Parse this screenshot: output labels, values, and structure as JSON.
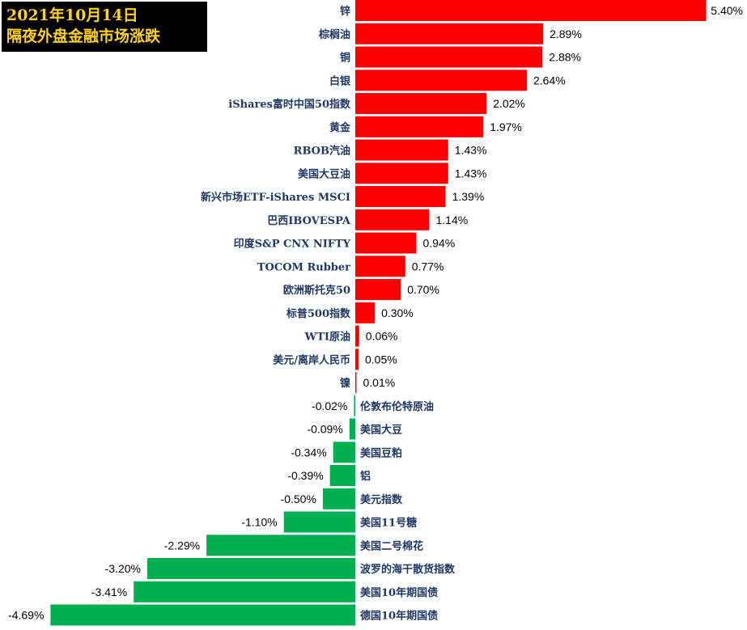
{
  "title": {
    "line1": "2021年10月14日",
    "line2": "隔夜外盘金融市场涨跌"
  },
  "chart_data": {
    "type": "bar",
    "orientation": "horizontal",
    "categories": [
      "锌",
      "棕榈油",
      "铜",
      "白银",
      "iShares富时中国50指数",
      "黄金",
      "RBOB汽油",
      "美国大豆油",
      "新兴市场ETF-iShares MSCI",
      "巴西IBOVESPA",
      "印度S&P CNX NIFTY",
      "TOCOM Rubber",
      "欧洲斯托克50",
      "标普500指数",
      "WTI原油",
      "美元/离岸人民币",
      "镍",
      "伦敦布伦特原油",
      "美国大豆",
      "美国豆粕",
      "铝",
      "美元指数",
      "美国11号糖",
      "美国二号棉花",
      "波罗的海干散货指数",
      "美国10年期国债",
      "德国10年期国债"
    ],
    "values": [
      5.4,
      2.89,
      2.88,
      2.64,
      2.02,
      1.97,
      1.43,
      1.43,
      1.39,
      1.14,
      0.94,
      0.77,
      0.7,
      0.3,
      0.06,
      0.05,
      0.01,
      -0.02,
      -0.09,
      -0.34,
      -0.39,
      -0.5,
      -1.1,
      -2.29,
      -3.2,
      -3.41,
      -4.69
    ],
    "labels": [
      "5.40%",
      "2.89%",
      "2.88%",
      "2.64%",
      "2.02%",
      "1.97%",
      "1.43%",
      "1.43%",
      "1.39%",
      "1.14%",
      "0.94%",
      "0.77%",
      "0.70%",
      "0.30%",
      "0.06%",
      "0.05%",
      "0.01%",
      "-0.02%",
      "-0.09%",
      "-0.34%",
      "-0.39%",
      "-0.50%",
      "-1.10%",
      "-2.29%",
      "-3.20%",
      "-3.41%",
      "-4.69%"
    ],
    "colors": {
      "positive": "#ff0000",
      "negative": "#00b050"
    },
    "grid": false,
    "legend": "none"
  }
}
